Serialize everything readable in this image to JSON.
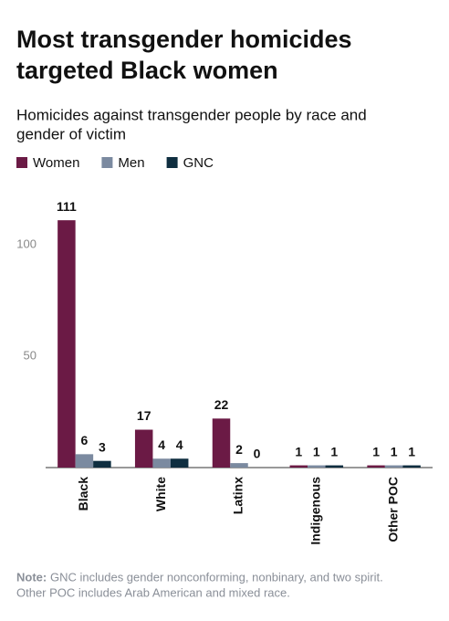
{
  "chart_data": {
    "type": "bar",
    "title": [
      "Most transgender homicides",
      "targeted Black women"
    ],
    "subtitle": [
      "Homicides against transgender people by race and",
      "gender of victim"
    ],
    "categories": [
      "Black",
      "White",
      "Latinx",
      "Indigenous",
      "Other POC"
    ],
    "series": [
      {
        "name": "Women",
        "color": "#6b1a45",
        "values": [
          111,
          17,
          22,
          1,
          1
        ]
      },
      {
        "name": "Men",
        "color": "#7b8aa0",
        "values": [
          6,
          4,
          2,
          1,
          1
        ]
      },
      {
        "name": "GNC",
        "color": "#0f2e40",
        "values": [
          3,
          4,
          0,
          1,
          1
        ]
      }
    ],
    "ylim": [
      0,
      120
    ],
    "yticks": [
      50,
      100
    ],
    "note": {
      "label": "Note:",
      "lines": [
        " GNC includes gender nonconforming, nonbinary, and two spirit.",
        "Other POC includes Arab American and mixed race."
      ]
    }
  }
}
